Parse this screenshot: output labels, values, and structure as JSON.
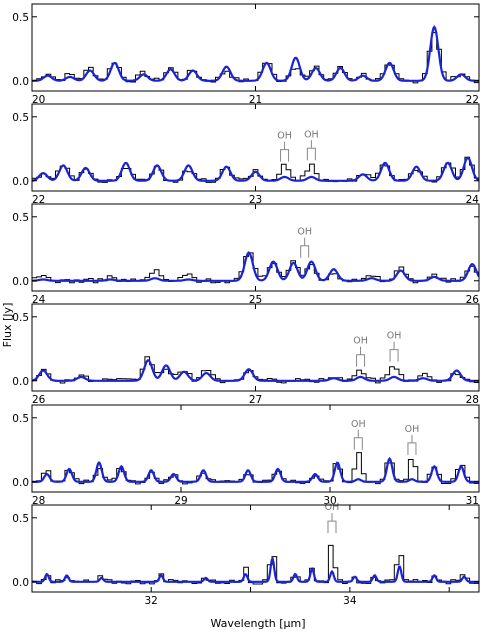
{
  "figure": {
    "xlabel": "Wavelength [μm]",
    "ylabel": "Flux [Jy]",
    "colors": {
      "observed": "#000000",
      "model": "#1a24d6",
      "annotation": "#888888"
    }
  },
  "chart_data": [
    {
      "type": "line",
      "xlim": [
        20,
        22
      ],
      "ylim": [
        -0.08,
        0.6
      ],
      "xticks": [
        20,
        21,
        22
      ],
      "xtick_labels": [
        "20",
        "21",
        "22"
      ],
      "yticks": [
        0.0,
        0.5
      ],
      "ytick_labels": [
        "0.0",
        "0.5"
      ],
      "peaks": [
        {
          "x": 20.07,
          "obs": 0.06,
          "mod": 0.04
        },
        {
          "x": 20.17,
          "obs": 0.05,
          "mod": 0.03
        },
        {
          "x": 20.26,
          "obs": 0.1,
          "mod": 0.08
        },
        {
          "x": 20.37,
          "obs": 0.15,
          "mod": 0.14
        },
        {
          "x": 20.5,
          "obs": 0.06,
          "mod": 0.05
        },
        {
          "x": 20.62,
          "obs": 0.1,
          "mod": 0.09
        },
        {
          "x": 20.72,
          "obs": 0.08,
          "mod": 0.08
        },
        {
          "x": 20.87,
          "obs": 0.08,
          "mod": 0.11
        },
        {
          "x": 21.05,
          "obs": 0.15,
          "mod": 0.14
        },
        {
          "x": 21.18,
          "obs": 0.12,
          "mod": 0.18
        },
        {
          "x": 21.27,
          "obs": 0.1,
          "mod": 0.1
        },
        {
          "x": 21.38,
          "obs": 0.1,
          "mod": 0.1
        },
        {
          "x": 21.48,
          "obs": 0.05,
          "mod": 0.04
        },
        {
          "x": 21.6,
          "obs": 0.12,
          "mod": 0.14
        },
        {
          "x": 21.8,
          "obs": 0.38,
          "mod": 0.42
        },
        {
          "x": 21.92,
          "obs": 0.06,
          "mod": 0.05
        }
      ],
      "oh_markers": []
    },
    {
      "type": "line",
      "xlim": [
        22,
        24
      ],
      "ylim": [
        -0.08,
        0.6
      ],
      "xticks": [
        22,
        23,
        24
      ],
      "xtick_labels": [
        "22",
        "23",
        "24"
      ],
      "yticks": [
        0.0,
        0.5
      ],
      "ytick_labels": [
        "0.0",
        "0.5"
      ],
      "peaks": [
        {
          "x": 22.05,
          "obs": 0.06,
          "mod": 0.06
        },
        {
          "x": 22.14,
          "obs": 0.12,
          "mod": 0.12
        },
        {
          "x": 22.24,
          "obs": 0.08,
          "mod": 0.1
        },
        {
          "x": 22.42,
          "obs": 0.1,
          "mod": 0.14
        },
        {
          "x": 22.56,
          "obs": 0.1,
          "mod": 0.12
        },
        {
          "x": 22.7,
          "obs": 0.08,
          "mod": 0.12
        },
        {
          "x": 22.87,
          "obs": 0.1,
          "mod": 0.11
        },
        {
          "x": 23.0,
          "obs": 0.07,
          "mod": 0.07
        },
        {
          "x": 23.13,
          "obs": 0.12,
          "mod": 0.03
        },
        {
          "x": 23.25,
          "obs": 0.13,
          "mod": 0.03
        },
        {
          "x": 23.48,
          "obs": 0.06,
          "mod": 0.05
        },
        {
          "x": 23.58,
          "obs": 0.14,
          "mod": 0.14
        },
        {
          "x": 23.72,
          "obs": 0.1,
          "mod": 0.11
        },
        {
          "x": 23.86,
          "obs": 0.15,
          "mod": 0.14
        },
        {
          "x": 23.95,
          "obs": 0.18,
          "mod": 0.18
        }
      ],
      "oh_markers": [
        {
          "x": 23.13,
          "label": "OH"
        },
        {
          "x": 23.25,
          "label": "OH"
        }
      ]
    },
    {
      "type": "line",
      "xlim": [
        24,
        26
      ],
      "ylim": [
        -0.08,
        0.6
      ],
      "xticks": [
        24,
        25,
        26
      ],
      "xtick_labels": [
        "24",
        "25",
        "26"
      ],
      "yticks": [
        0.0,
        0.5
      ],
      "ytick_labels": [
        "0.0",
        "0.5"
      ],
      "peaks": [
        {
          "x": 24.05,
          "obs": 0.04,
          "mod": 0.01
        },
        {
          "x": 24.35,
          "obs": 0.03,
          "mod": 0.01
        },
        {
          "x": 24.55,
          "obs": 0.08,
          "mod": 0.02
        },
        {
          "x": 24.7,
          "obs": 0.05,
          "mod": 0.01
        },
        {
          "x": 24.97,
          "obs": 0.22,
          "mod": 0.22
        },
        {
          "x": 25.08,
          "obs": 0.15,
          "mod": 0.15
        },
        {
          "x": 25.17,
          "obs": 0.14,
          "mod": 0.14
        },
        {
          "x": 25.25,
          "obs": 0.13,
          "mod": 0.15
        },
        {
          "x": 25.35,
          "obs": 0.07,
          "mod": 0.09
        },
        {
          "x": 25.52,
          "obs": 0.04,
          "mod": 0.02
        },
        {
          "x": 25.65,
          "obs": 0.1,
          "mod": 0.08
        },
        {
          "x": 25.8,
          "obs": 0.04,
          "mod": 0.03
        },
        {
          "x": 25.97,
          "obs": 0.12,
          "mod": 0.13
        }
      ],
      "oh_markers": [
        {
          "x": 25.22,
          "label": "OH"
        }
      ]
    },
    {
      "type": "line",
      "xlim": [
        26,
        28
      ],
      "ylim": [
        -0.08,
        0.6
      ],
      "xticks": [
        26,
        27,
        28
      ],
      "xtick_labels": [
        "26",
        "27",
        "28"
      ],
      "yticks": [
        0.0,
        0.5
      ],
      "ytick_labels": [
        "0.0",
        "0.5"
      ],
      "peaks": [
        {
          "x": 26.05,
          "obs": 0.08,
          "mod": 0.08
        },
        {
          "x": 26.22,
          "obs": 0.04,
          "mod": 0.03
        },
        {
          "x": 26.52,
          "obs": 0.18,
          "mod": 0.16
        },
        {
          "x": 26.6,
          "obs": 0.1,
          "mod": 0.12
        },
        {
          "x": 26.68,
          "obs": 0.08,
          "mod": 0.07
        },
        {
          "x": 26.78,
          "obs": 0.08,
          "mod": 0.06
        },
        {
          "x": 26.97,
          "obs": 0.08,
          "mod": 0.09
        },
        {
          "x": 27.35,
          "obs": 0.04,
          "mod": 0.02
        },
        {
          "x": 27.47,
          "obs": 0.08,
          "mod": 0.03
        },
        {
          "x": 27.62,
          "obs": 0.12,
          "mod": 0.03
        },
        {
          "x": 27.75,
          "obs": 0.05,
          "mod": 0.02
        },
        {
          "x": 27.9,
          "obs": 0.05,
          "mod": 0.08
        }
      ],
      "oh_markers": [
        {
          "x": 27.47,
          "label": "OH"
        },
        {
          "x": 27.62,
          "label": "OH"
        }
      ]
    },
    {
      "type": "line",
      "xlim": [
        28,
        31
      ],
      "ylim": [
        -0.08,
        0.6
      ],
      "xticks": [
        28,
        29,
        30,
        31
      ],
      "xtick_labels": [
        "28",
        "29",
        "30",
        "31"
      ],
      "yticks": [
        0.0,
        0.5
      ],
      "ytick_labels": [
        "0.0",
        "0.5"
      ],
      "peaks": [
        {
          "x": 28.1,
          "obs": 0.08,
          "mod": 0.06
        },
        {
          "x": 28.25,
          "obs": 0.1,
          "mod": 0.1
        },
        {
          "x": 28.45,
          "obs": 0.12,
          "mod": 0.15
        },
        {
          "x": 28.6,
          "obs": 0.12,
          "mod": 0.12
        },
        {
          "x": 28.8,
          "obs": 0.09,
          "mod": 0.09
        },
        {
          "x": 28.95,
          "obs": 0.07,
          "mod": 0.06
        },
        {
          "x": 29.15,
          "obs": 0.08,
          "mod": 0.09
        },
        {
          "x": 29.45,
          "obs": 0.08,
          "mod": 0.09
        },
        {
          "x": 29.65,
          "obs": 0.1,
          "mod": 0.1
        },
        {
          "x": 29.9,
          "obs": 0.06,
          "mod": 0.06
        },
        {
          "x": 30.05,
          "obs": 0.15,
          "mod": 0.15
        },
        {
          "x": 30.19,
          "obs": 0.22,
          "mod": 0.02
        },
        {
          "x": 30.4,
          "obs": 0.18,
          "mod": 0.18
        },
        {
          "x": 30.55,
          "obs": 0.18,
          "mod": 0.02
        },
        {
          "x": 30.7,
          "obs": 0.12,
          "mod": 0.12
        },
        {
          "x": 30.88,
          "obs": 0.15,
          "mod": 0.12
        }
      ],
      "oh_markers": [
        {
          "x": 30.19,
          "label": "OH"
        },
        {
          "x": 30.55,
          "label": "OH"
        }
      ]
    },
    {
      "type": "line",
      "xlim": [
        30.8,
        35.3
      ],
      "ylim": [
        -0.08,
        0.6
      ],
      "xticks": [
        32,
        33,
        34,
        35
      ],
      "xtick_labels": [
        "32",
        "",
        "34",
        ""
      ],
      "yticks": [
        0.0,
        0.5
      ],
      "ytick_labels": [
        "0.0",
        "0.5"
      ],
      "peaks": [
        {
          "x": 30.95,
          "obs": 0.08,
          "mod": 0.06
        },
        {
          "x": 31.15,
          "obs": 0.03,
          "mod": 0.05
        },
        {
          "x": 31.5,
          "obs": 0.04,
          "mod": 0.03
        },
        {
          "x": 32.1,
          "obs": 0.05,
          "mod": 0.05
        },
        {
          "x": 32.55,
          "obs": 0.04,
          "mod": 0.03
        },
        {
          "x": 32.95,
          "obs": 0.1,
          "mod": 0.06
        },
        {
          "x": 33.22,
          "obs": 0.3,
          "mod": 0.18
        },
        {
          "x": 33.45,
          "obs": 0.07,
          "mod": 0.06
        },
        {
          "x": 33.62,
          "obs": 0.12,
          "mod": 0.1
        },
        {
          "x": 33.82,
          "obs": 0.35,
          "mod": 0.08
        },
        {
          "x": 34.05,
          "obs": 0.05,
          "mod": 0.04
        },
        {
          "x": 34.25,
          "obs": 0.06,
          "mod": 0.05
        },
        {
          "x": 34.5,
          "obs": 0.28,
          "mod": 0.12
        },
        {
          "x": 34.85,
          "obs": 0.06,
          "mod": 0.05
        },
        {
          "x": 35.15,
          "obs": 0.05,
          "mod": 0.04
        }
      ],
      "oh_markers": [
        {
          "x": 33.82,
          "label": "OH"
        }
      ]
    }
  ]
}
